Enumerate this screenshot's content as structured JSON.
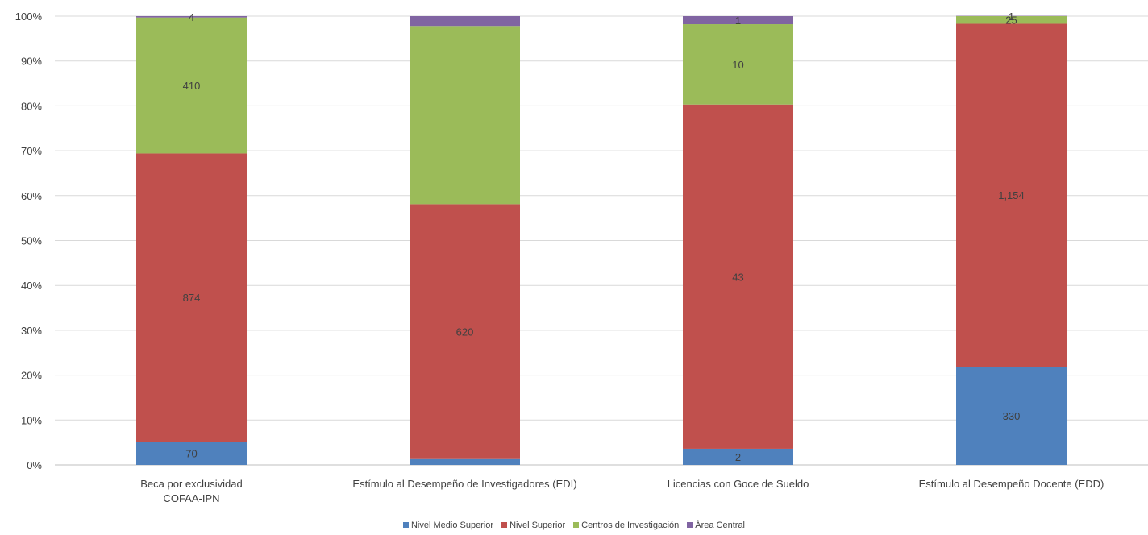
{
  "chart_data": {
    "type": "bar",
    "stacked": "percent",
    "categories": [
      [
        "Beca por exclusividad",
        "COFAA-IPN"
      ],
      [
        "Estímulo al Desempeño de Investigadores (EDI)"
      ],
      [
        "Licencias con Goce de Sueldo"
      ],
      [
        "Estímulo al Desempeño Docente (EDD)"
      ]
    ],
    "series": [
      {
        "name": "Nivel Medio Superior",
        "color": "#4F81BD",
        "percent": [
          5.2,
          1.3,
          3.6,
          21.9
        ],
        "labels": [
          "70",
          "",
          "2",
          "330"
        ]
      },
      {
        "name": "Nivel Superior",
        "color": "#C0504D",
        "percent": [
          64.2,
          56.8,
          76.7,
          76.4
        ],
        "labels": [
          "874",
          "620",
          "43",
          "1,154"
        ]
      },
      {
        "name": "Centros de Investigación",
        "color": "#9BBB59",
        "percent": [
          30.3,
          39.7,
          17.9,
          1.7
        ],
        "labels": [
          "410",
          "",
          "10",
          "25"
        ]
      },
      {
        "name": "Área Central",
        "color": "#8064A2",
        "percent": [
          0.3,
          2.2,
          1.8,
          0.07
        ],
        "labels": [
          "4",
          "",
          "1",
          "1"
        ]
      }
    ],
    "yticks": [
      "0%",
      "10%",
      "20%",
      "30%",
      "40%",
      "50%",
      "60%",
      "70%",
      "80%",
      "90%",
      "100%"
    ],
    "ylim": [
      0,
      100
    ],
    "grid": true,
    "legend_position": "bottom"
  }
}
